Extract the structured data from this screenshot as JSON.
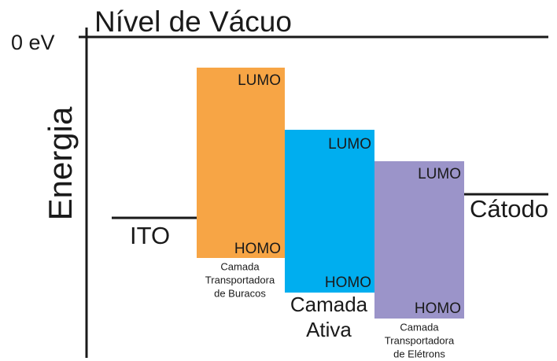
{
  "header": {
    "title": "Nível de Vácuo",
    "zero_label": "0 eV",
    "axis_label": "Energia"
  },
  "electrodes": [
    {
      "label": "ITO"
    },
    {
      "label": "Cátodo"
    }
  ],
  "layers": [
    {
      "lumo": "LUMO",
      "homo": "HOMO",
      "name": [
        "Camada",
        "Transportadora",
        "de Buracos"
      ]
    },
    {
      "lumo": "LUMO",
      "homo": "HOMO",
      "name": [
        "Camada",
        "Ativa"
      ]
    },
    {
      "lumo": "LUMO",
      "homo": "HOMO",
      "name": [
        "Camada",
        "Transportadora",
        "de Elétrons"
      ]
    }
  ]
}
